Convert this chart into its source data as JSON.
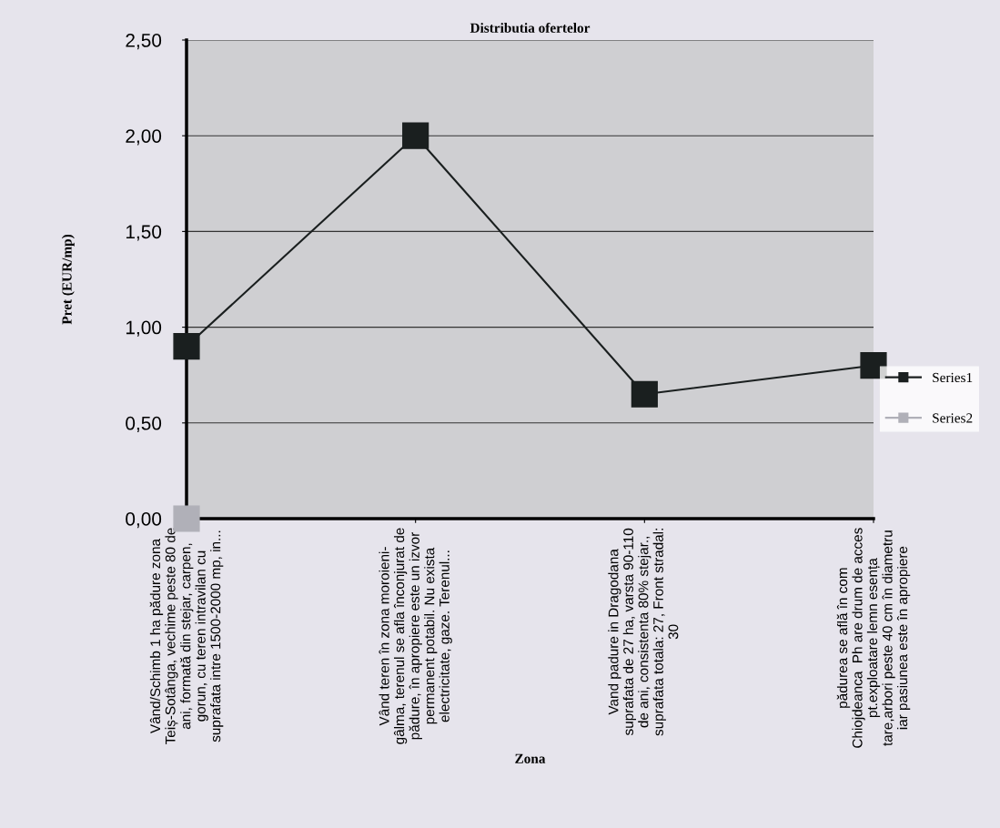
{
  "chart_data": {
    "type": "line",
    "title": "Distributia ofertelor",
    "xlabel": "Zona",
    "ylabel": "Pret (EUR/mp)",
    "categories": [
      "Vând/Schimb 1 ha pădure zona\nTeiș-Sotânga, vechime peste 80 de\nani, formată din stejar, carpen,\ngorun, cu teren intravilan cu\nsuprafata intre 1500-2000 mp, in...",
      "Vând teren în zona moroieni-\ngâlma, terenul se afla înconjurat de\npădure, în apropiere este un izvor\npermanent potabil. Nu exista\nelectricitate, gaze. Terenul...",
      "Vand padure in Dragodana\nsuprafata de 27 ha, varsta 90-110\nde ani, consistenta 80% stejar.,\nsuprafata totala: 27, Front stradal:\n30",
      "pădurea se află în com\nChiojdeanca  Ph are drum de acces\npt.exploatare lemn esența\ntare,arbori peste 40 cm în diametru\niar pasiunea este în apropiere"
    ],
    "series": [
      {
        "name": "Series1",
        "color": "#1a1f1f",
        "values": [
          0.9,
          2.0,
          0.65,
          0.8
        ]
      },
      {
        "name": "Series2",
        "color": "#b0b0b8",
        "values": [
          0,
          null,
          null,
          null
        ]
      }
    ],
    "ylim": [
      0,
      2.5
    ],
    "yticks": [
      {
        "value": 0,
        "label": "0,00"
      },
      {
        "value": 0.5,
        "label": "0,50"
      },
      {
        "value": 1,
        "label": "1,00"
      },
      {
        "value": 1.5,
        "label": "1,50"
      },
      {
        "value": 2,
        "label": "2,00"
      },
      {
        "value": 2.5,
        "label": "2,50"
      }
    ],
    "grid": "y",
    "legend": "right",
    "marker": "square",
    "line_style": "solid"
  }
}
